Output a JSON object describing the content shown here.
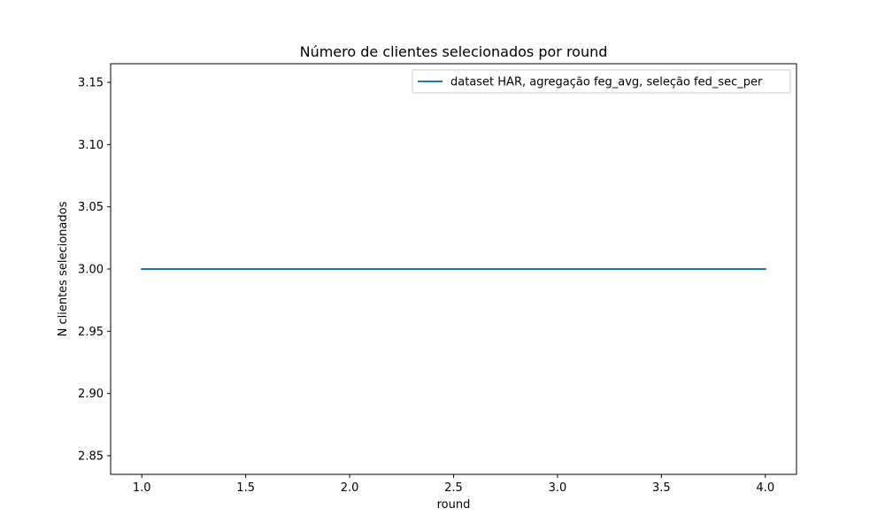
{
  "chart_data": {
    "type": "line",
    "title": "Número de clientes selecionados por round",
    "xlabel": "round",
    "ylabel": "N clientes selecionados",
    "xlim": [
      0.85,
      4.15
    ],
    "ylim": [
      2.835,
      3.165
    ],
    "x_ticks": [
      1.0,
      1.5,
      2.0,
      2.5,
      3.0,
      3.5,
      4.0
    ],
    "x_tick_labels": [
      "1.0",
      "1.5",
      "2.0",
      "2.5",
      "3.0",
      "3.5",
      "4.0"
    ],
    "y_ticks": [
      2.85,
      2.9,
      2.95,
      3.0,
      3.05,
      3.1,
      3.15
    ],
    "y_tick_labels": [
      "2.85",
      "2.90",
      "2.95",
      "3.00",
      "3.05",
      "3.10",
      "3.15"
    ],
    "grid": false,
    "legend_position": "top-right",
    "series": [
      {
        "name": "dataset HAR, agregação feg_avg, seleção fed_sec_per",
        "color": "#1f77b4",
        "x": [
          1,
          2,
          3,
          4
        ],
        "y": [
          3,
          3,
          3,
          3
        ]
      }
    ]
  }
}
